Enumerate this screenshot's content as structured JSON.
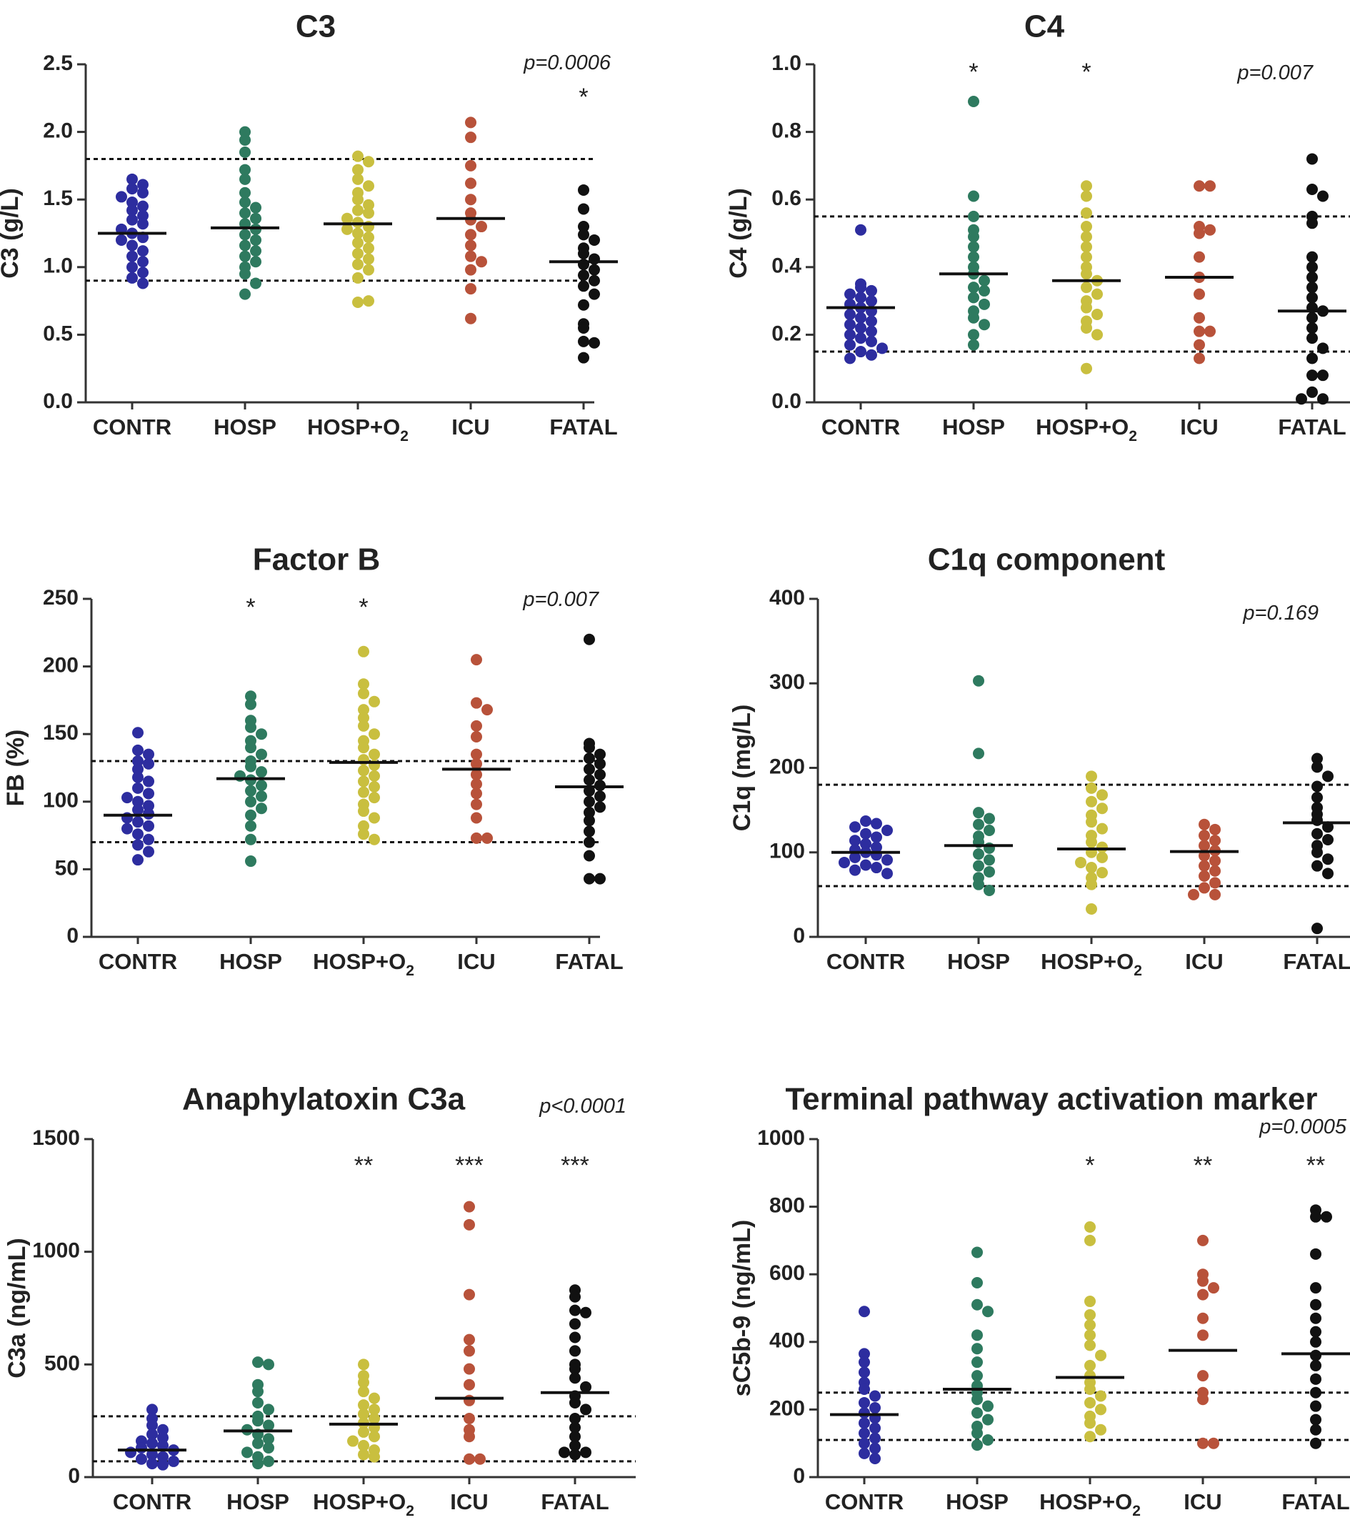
{
  "chart_data": [
    {
      "type": "scatter",
      "title": "C3",
      "ylabel": "C3 (g/L)",
      "ylim": [
        0,
        2.5
      ],
      "yticks": [
        "0.0",
        "0.5",
        "1.0",
        "1.5",
        "2.0",
        "2.5"
      ],
      "categories": [
        "CONTR",
        "HOSP",
        "HOSP+O2",
        "ICU",
        "FATAL"
      ],
      "colors": [
        "#2d2d9f",
        "#2e7a5f",
        "#c9bf3f",
        "#b8523a",
        "#111111"
      ],
      "p_value": "p=0.0006",
      "significance": [
        "",
        "",
        "",
        "",
        "*"
      ],
      "reference_lines": [
        0.9,
        1.8
      ],
      "medians": [
        1.25,
        1.29,
        1.32,
        1.36,
        1.04
      ],
      "values": [
        [
          1.65,
          1.61,
          1.58,
          1.55,
          1.52,
          1.48,
          1.45,
          1.42,
          1.38,
          1.35,
          1.32,
          1.28,
          1.25,
          1.22,
          1.2,
          1.16,
          1.12,
          1.08,
          1.04,
          1.0,
          0.96,
          0.92,
          0.88
        ],
        [
          2.0,
          1.94,
          1.85,
          1.72,
          1.65,
          1.55,
          1.48,
          1.44,
          1.4,
          1.36,
          1.32,
          1.28,
          1.24,
          1.2,
          1.16,
          1.12,
          1.08,
          1.04,
          1.0,
          0.95,
          0.88,
          0.8
        ],
        [
          1.82,
          1.78,
          1.72,
          1.65,
          1.6,
          1.55,
          1.5,
          1.46,
          1.42,
          1.4,
          1.36,
          1.33,
          1.3,
          1.28,
          1.25,
          1.22,
          1.18,
          1.14,
          1.1,
          1.06,
          1.02,
          0.98,
          0.92,
          0.74,
          0.75
        ],
        [
          2.07,
          1.96,
          1.75,
          1.62,
          1.5,
          1.4,
          1.35,
          1.3,
          1.24,
          1.16,
          1.08,
          1.04,
          0.98,
          0.84,
          0.62
        ],
        [
          1.57,
          1.43,
          1.3,
          1.24,
          1.2,
          1.14,
          1.1,
          1.06,
          1.02,
          0.98,
          0.94,
          0.9,
          0.86,
          0.8,
          0.72,
          0.58,
          0.55,
          0.45,
          0.44,
          0.33
        ]
      ]
    },
    {
      "type": "scatter",
      "title": "C4",
      "ylabel": "C4 (g/L)",
      "ylim": [
        0,
        1.0
      ],
      "yticks": [
        "0.0",
        "0.2",
        "0.4",
        "0.6",
        "0.8",
        "1.0"
      ],
      "categories": [
        "CONTR",
        "HOSP",
        "HOSP+O2",
        "ICU",
        "FATAL"
      ],
      "colors": [
        "#2d2d9f",
        "#2e7a5f",
        "#c9bf3f",
        "#b8523a",
        "#111111"
      ],
      "p_value": "p=0.007",
      "significance": [
        "",
        "*",
        "*",
        "",
        ""
      ],
      "reference_lines": [
        0.15,
        0.55
      ],
      "medians": [
        0.28,
        0.38,
        0.36,
        0.37,
        0.27
      ],
      "values": [
        [
          0.51,
          0.35,
          0.34,
          0.33,
          0.32,
          0.31,
          0.3,
          0.29,
          0.28,
          0.27,
          0.26,
          0.25,
          0.24,
          0.23,
          0.22,
          0.21,
          0.2,
          0.19,
          0.18,
          0.17,
          0.16,
          0.15,
          0.14,
          0.13
        ],
        [
          0.89,
          0.61,
          0.55,
          0.51,
          0.49,
          0.46,
          0.43,
          0.4,
          0.38,
          0.36,
          0.34,
          0.33,
          0.31,
          0.29,
          0.27,
          0.25,
          0.23,
          0.2,
          0.17
        ],
        [
          0.64,
          0.61,
          0.56,
          0.52,
          0.49,
          0.46,
          0.43,
          0.4,
          0.38,
          0.36,
          0.34,
          0.32,
          0.3,
          0.28,
          0.26,
          0.24,
          0.22,
          0.2,
          0.1
        ],
        [
          0.64,
          0.64,
          0.52,
          0.51,
          0.5,
          0.43,
          0.37,
          0.32,
          0.25,
          0.21,
          0.21,
          0.17,
          0.13
        ],
        [
          0.72,
          0.63,
          0.61,
          0.55,
          0.53,
          0.43,
          0.4,
          0.37,
          0.34,
          0.31,
          0.28,
          0.27,
          0.25,
          0.22,
          0.19,
          0.16,
          0.13,
          0.08,
          0.08,
          0.03,
          0.01,
          0.01
        ]
      ]
    },
    {
      "type": "scatter",
      "title": "Factor B",
      "ylabel": "FB (%)",
      "ylim": [
        0,
        250
      ],
      "yticks": [
        "0",
        "50",
        "100",
        "150",
        "200",
        "250"
      ],
      "categories": [
        "CONTR",
        "HOSP",
        "HOSP+O2",
        "ICU",
        "FATAL"
      ],
      "colors": [
        "#2d2d9f",
        "#2e7a5f",
        "#c9bf3f",
        "#b8523a",
        "#111111"
      ],
      "p_value": "p=0.007",
      "significance": [
        "",
        "*",
        "*",
        "",
        ""
      ],
      "reference_lines": [
        70,
        130
      ],
      "medians": [
        90,
        117,
        129,
        124,
        111
      ],
      "values": [
        [
          151,
          138,
          135,
          130,
          128,
          124,
          118,
          115,
          110,
          106,
          103,
          100,
          97,
          94,
          91,
          88,
          85,
          82,
          80,
          76,
          72,
          68,
          63,
          57
        ],
        [
          178,
          172,
          160,
          155,
          150,
          145,
          140,
          135,
          130,
          126,
          122,
          119,
          116,
          112,
          108,
          104,
          100,
          95,
          90,
          82,
          72,
          56
        ],
        [
          211,
          187,
          180,
          174,
          168,
          162,
          156,
          150,
          145,
          140,
          135,
          131,
          127,
          123,
          119,
          115,
          111,
          107,
          103,
          98,
          93,
          88,
          82,
          76,
          72
        ],
        [
          205,
          173,
          168,
          156,
          148,
          135,
          128,
          120,
          113,
          106,
          98,
          88,
          73,
          73
        ],
        [
          220,
          143,
          140,
          135,
          132,
          128,
          124,
          120,
          116,
          112,
          108,
          104,
          100,
          96,
          92,
          86,
          78,
          70,
          60,
          43,
          43
        ]
      ]
    },
    {
      "type": "scatter",
      "title": "C1q component",
      "ylabel": "C1q (mg/L)",
      "ylim": [
        0,
        400
      ],
      "yticks": [
        "0",
        "100",
        "200",
        "300",
        "400"
      ],
      "categories": [
        "CONTR",
        "HOSP",
        "HOSP+O2",
        "ICU",
        "FATAL"
      ],
      "colors": [
        "#2d2d9f",
        "#2e7a5f",
        "#c9bf3f",
        "#b8523a",
        "#111111"
      ],
      "p_value": "p=0.169",
      "significance": [
        "",
        "",
        "",
        "",
        ""
      ],
      "reference_lines": [
        60,
        180
      ],
      "medians": [
        100,
        108,
        104,
        101,
        135
      ],
      "values": [
        [
          137,
          134,
          130,
          126,
          122,
          118,
          114,
          110,
          106,
          103,
          100,
          97,
          94,
          91,
          88,
          85,
          82,
          79,
          75
        ],
        [
          303,
          217,
          147,
          140,
          133,
          126,
          119,
          112,
          105,
          98,
          91,
          84,
          77,
          70,
          62,
          55
        ],
        [
          190,
          176,
          168,
          160,
          152,
          144,
          136,
          128,
          120,
          112,
          106,
          100,
          94,
          88,
          82,
          76,
          70,
          62,
          33
        ],
        [
          133,
          127,
          120,
          114,
          108,
          102,
          96,
          90,
          84,
          78,
          72,
          64,
          58,
          50,
          50
        ],
        [
          211,
          201,
          190,
          178,
          165,
          153,
          145,
          138,
          130,
          122,
          115,
          108,
          100,
          92,
          84,
          75,
          10
        ]
      ]
    },
    {
      "type": "scatter",
      "title": "Anaphylatoxin C3a",
      "ylabel": "C3a (ng/mL)",
      "ylim": [
        0,
        1500
      ],
      "yticks": [
        "0",
        "500",
        "1000",
        "1500"
      ],
      "categories": [
        "CONTR",
        "HOSP",
        "HOSP+O2",
        "ICU",
        "FATAL"
      ],
      "colors": [
        "#2d2d9f",
        "#2e7a5f",
        "#c9bf3f",
        "#b8523a",
        "#111111"
      ],
      "p_value": "p<0.0001",
      "significance": [
        "",
        "",
        "**",
        "***",
        "***"
      ],
      "reference_lines": [
        70,
        270
      ],
      "medians": [
        120,
        205,
        235,
        350,
        375
      ],
      "values": [
        [
          300,
          260,
          230,
          210,
          190,
          175,
          160,
          150,
          140,
          130,
          120,
          110,
          100,
          90,
          80,
          70,
          60,
          55
        ],
        [
          510,
          500,
          410,
          380,
          330,
          300,
          270,
          250,
          230,
          210,
          190,
          170,
          150,
          130,
          110,
          90,
          70,
          60
        ],
        [
          500,
          450,
          420,
          380,
          350,
          320,
          300,
          280,
          260,
          240,
          220,
          200,
          180,
          160,
          140,
          120,
          100,
          90
        ],
        [
          1200,
          1120,
          810,
          610,
          560,
          480,
          410,
          340,
          260,
          210,
          180,
          80,
          80
        ],
        [
          830,
          800,
          740,
          730,
          680,
          620,
          560,
          500,
          480,
          440,
          400,
          360,
          330,
          300,
          260,
          220,
          180,
          140,
          110,
          110,
          100
        ]
      ]
    },
    {
      "type": "scatter",
      "title": "Terminal pathway activation marker",
      "ylabel": "sC5b-9 (ng/mL)",
      "ylim": [
        0,
        1000
      ],
      "yticks": [
        "0",
        "200",
        "400",
        "600",
        "800",
        "1000"
      ],
      "categories": [
        "CONTR",
        "HOSP",
        "HOSP+O2",
        "ICU",
        "FATAL"
      ],
      "colors": [
        "#2d2d9f",
        "#2e7a5f",
        "#c9bf3f",
        "#b8523a",
        "#111111"
      ],
      "p_value": "p=0.0005",
      "significance": [
        "",
        "",
        "*",
        "**",
        "**"
      ],
      "reference_lines": [
        110,
        250
      ],
      "medians": [
        185,
        260,
        295,
        375,
        365
      ],
      "values": [
        [
          490,
          365,
          340,
          310,
          280,
          260,
          240,
          220,
          205,
          190,
          175,
          160,
          145,
          130,
          115,
          100,
          85,
          70,
          55
        ],
        [
          665,
          575,
          510,
          490,
          420,
          380,
          340,
          300,
          270,
          250,
          230,
          210,
          190,
          170,
          150,
          130,
          110,
          95
        ],
        [
          740,
          700,
          520,
          480,
          450,
          420,
          390,
          360,
          330,
          300,
          280,
          260,
          240,
          220,
          200,
          180,
          160,
          140,
          120
        ],
        [
          700,
          600,
          580,
          560,
          540,
          470,
          420,
          300,
          250,
          230,
          100,
          100
        ],
        [
          790,
          770,
          770,
          660,
          560,
          510,
          470,
          430,
          400,
          360,
          330,
          290,
          250,
          210,
          170,
          140,
          100
        ]
      ]
    }
  ]
}
